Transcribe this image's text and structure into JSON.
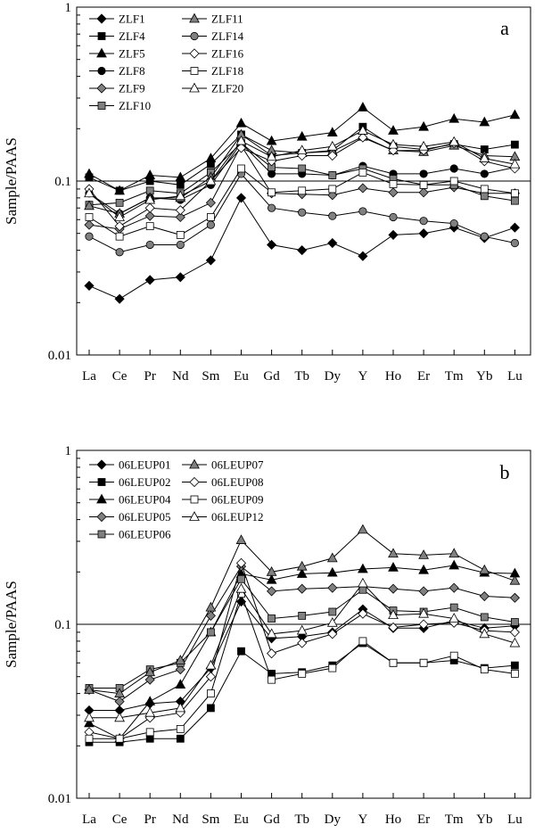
{
  "chart_data": [
    {
      "type": "line",
      "panel_label": "a",
      "ylabel": "Sample/PAAS",
      "yscale": "log",
      "ylim": [
        0.01,
        1
      ],
      "ytick_labels": [
        "1",
        "0.1",
        "0.01"
      ],
      "reference_line": 0.1,
      "categories": [
        "La",
        "Ce",
        "Pr",
        "Nd",
        "Sm",
        "Eu",
        "Gd",
        "Tb",
        "Dy",
        "Y",
        "Ho",
        "Er",
        "Tm",
        "Yb",
        "Lu"
      ],
      "series": [
        {
          "name": "ZLF1",
          "marker": "diamond",
          "color": "#000000",
          "values": [
            0.025,
            0.021,
            0.027,
            0.028,
            0.035,
            0.08,
            0.043,
            0.04,
            0.044,
            0.037,
            0.049,
            0.05,
            0.054,
            0.047,
            0.054
          ]
        },
        {
          "name": "ZLF4",
          "marker": "square",
          "color": "#000000",
          "values": [
            0.105,
            0.088,
            0.1,
            0.095,
            0.125,
            0.185,
            0.14,
            0.145,
            0.15,
            0.205,
            0.158,
            0.152,
            0.163,
            0.152,
            0.162
          ]
        },
        {
          "name": "ZLF5",
          "marker": "triangle",
          "color": "#000000",
          "values": [
            0.11,
            0.088,
            0.108,
            0.105,
            0.135,
            0.215,
            0.17,
            0.18,
            0.19,
            0.265,
            0.195,
            0.205,
            0.228,
            0.218,
            0.24
          ]
        },
        {
          "name": "ZLF8",
          "marker": "circle",
          "color": "#000000",
          "values": [
            0.085,
            0.065,
            0.08,
            0.078,
            0.095,
            0.165,
            0.11,
            0.11,
            0.108,
            0.122,
            0.11,
            0.11,
            0.118,
            0.11,
            0.12
          ]
        },
        {
          "name": "ZLF9",
          "marker": "diamond",
          "color": "#808080",
          "values": [
            0.056,
            0.053,
            0.063,
            0.062,
            0.075,
            0.16,
            0.085,
            0.084,
            0.083,
            0.091,
            0.086,
            0.086,
            0.092,
            0.085,
            0.085
          ]
        },
        {
          "name": "ZLF10",
          "marker": "square",
          "color": "#808080",
          "values": [
            0.073,
            0.075,
            0.088,
            0.085,
            0.112,
            0.165,
            0.12,
            0.118,
            0.108,
            0.118,
            0.103,
            0.095,
            0.095,
            0.082,
            0.077
          ]
        },
        {
          "name": "ZLF11",
          "marker": "triangle",
          "color": "#808080",
          "values": [
            0.072,
            0.065,
            0.08,
            0.08,
            0.105,
            0.185,
            0.15,
            0.145,
            0.148,
            0.18,
            0.15,
            0.147,
            0.16,
            0.14,
            0.138
          ]
        },
        {
          "name": "ZLF14",
          "marker": "circle",
          "color": "#808080",
          "values": [
            0.048,
            0.039,
            0.043,
            0.043,
            0.056,
            0.11,
            0.07,
            0.066,
            0.063,
            0.067,
            0.062,
            0.059,
            0.057,
            0.048,
            0.044
          ]
        },
        {
          "name": "ZLF16",
          "marker": "diamond",
          "color": "#ffffff",
          "values": [
            0.09,
            0.055,
            0.07,
            0.068,
            0.1,
            0.155,
            0.13,
            0.14,
            0.14,
            0.178,
            0.15,
            0.15,
            0.165,
            0.13,
            0.118
          ]
        },
        {
          "name": "ZLF18",
          "marker": "square",
          "color": "#ffffff",
          "values": [
            0.062,
            0.048,
            0.055,
            0.049,
            0.062,
            0.118,
            0.086,
            0.088,
            0.09,
            0.112,
            0.096,
            0.095,
            0.1,
            0.09,
            0.085
          ]
        },
        {
          "name": "ZLF20",
          "marker": "triangle",
          "color": "#ffffff",
          "values": [
            0.085,
            0.062,
            0.078,
            0.082,
            0.1,
            0.17,
            0.138,
            0.15,
            0.158,
            0.195,
            0.162,
            0.158,
            0.168,
            0.135,
            0.125
          ]
        }
      ]
    },
    {
      "type": "line",
      "panel_label": "b",
      "ylabel": "Sample/PAAS",
      "yscale": "log",
      "ylim": [
        0.01,
        1
      ],
      "ytick_labels": [
        "1",
        "0.1",
        "0.01"
      ],
      "reference_line": 0.1,
      "categories": [
        "La",
        "Ce",
        "Pr",
        "Nd",
        "Sm",
        "Eu",
        "Gd",
        "Tb",
        "Dy",
        "Y",
        "Ho",
        "Er",
        "Tm",
        "Yb",
        "Lu"
      ],
      "series": [
        {
          "name": "06LEUP01",
          "marker": "diamond",
          "color": "#000000",
          "values": [
            0.032,
            0.032,
            0.035,
            0.036,
            0.056,
            0.135,
            0.083,
            0.085,
            0.09,
            0.122,
            0.095,
            0.095,
            0.105,
            0.095,
            0.098
          ]
        },
        {
          "name": "06LEUP02",
          "marker": "square",
          "color": "#000000",
          "values": [
            0.021,
            0.021,
            0.022,
            0.022,
            0.033,
            0.07,
            0.052,
            0.053,
            0.058,
            0.078,
            0.06,
            0.06,
            0.062,
            0.056,
            0.058
          ]
        },
        {
          "name": "06LEUP04",
          "marker": "triangle",
          "color": "#000000",
          "values": [
            0.027,
            0.022,
            0.036,
            0.045,
            0.09,
            0.195,
            0.18,
            0.195,
            0.198,
            0.208,
            0.212,
            0.205,
            0.218,
            0.198,
            0.196
          ]
        },
        {
          "name": "06LEUP05",
          "marker": "diamond",
          "color": "#808080",
          "values": [
            0.042,
            0.036,
            0.048,
            0.055,
            0.112,
            0.215,
            0.155,
            0.16,
            0.162,
            0.165,
            0.16,
            0.155,
            0.162,
            0.145,
            0.142
          ]
        },
        {
          "name": "06LEUP06",
          "marker": "square",
          "color": "#808080",
          "values": [
            0.043,
            0.043,
            0.055,
            0.06,
            0.09,
            0.182,
            0.108,
            0.112,
            0.118,
            0.158,
            0.12,
            0.118,
            0.125,
            0.11,
            0.103
          ]
        },
        {
          "name": "06LEUP07",
          "marker": "triangle",
          "color": "#808080",
          "values": [
            0.042,
            0.04,
            0.053,
            0.062,
            0.125,
            0.305,
            0.2,
            0.215,
            0.24,
            0.35,
            0.255,
            0.25,
            0.255,
            0.205,
            0.178
          ]
        },
        {
          "name": "06LEUP08",
          "marker": "diamond",
          "color": "#ffffff",
          "values": [
            0.024,
            0.022,
            0.029,
            0.031,
            0.05,
            0.225,
            0.068,
            0.078,
            0.088,
            0.115,
            0.096,
            0.1,
            0.102,
            0.092,
            0.09
          ]
        },
        {
          "name": "06LEUP09",
          "marker": "square",
          "color": "#ffffff",
          "values": [
            0.022,
            0.022,
            0.024,
            0.025,
            0.04,
            0.15,
            0.048,
            0.052,
            0.056,
            0.08,
            0.06,
            0.06,
            0.066,
            0.055,
            0.052
          ]
        },
        {
          "name": "06LEUP12",
          "marker": "triangle",
          "color": "#ffffff",
          "values": [
            0.029,
            0.029,
            0.031,
            0.033,
            0.058,
            0.16,
            0.088,
            0.092,
            0.102,
            0.172,
            0.113,
            0.115,
            0.108,
            0.088,
            0.078
          ]
        }
      ]
    }
  ]
}
